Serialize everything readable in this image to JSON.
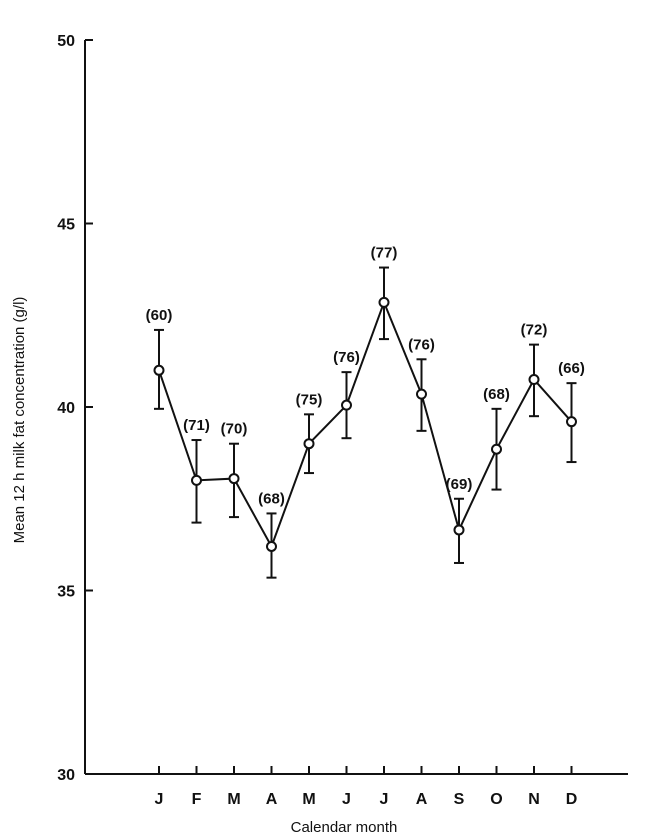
{
  "chart_data": {
    "type": "line",
    "xlabel": "Calendar month",
    "ylabel": "Mean 12 h milk fat concentration (g/l)",
    "ylim": [
      30,
      50
    ],
    "yticks": [
      30,
      35,
      40,
      45,
      50
    ],
    "categories": [
      "J",
      "F",
      "M",
      "A",
      "M",
      "J",
      "J",
      "A",
      "S",
      "O",
      "N",
      "D"
    ],
    "series": [
      {
        "values": [
          41.0,
          38.0,
          38.05,
          36.2,
          39.0,
          40.05,
          42.85,
          40.35,
          36.65,
          38.85,
          40.75,
          39.6
        ],
        "error_upper": [
          42.1,
          39.1,
          39.0,
          37.1,
          39.8,
          40.95,
          43.8,
          41.3,
          37.5,
          39.95,
          41.7,
          40.65
        ],
        "error_lower": [
          39.95,
          36.85,
          37.0,
          35.35,
          38.2,
          39.15,
          41.85,
          39.35,
          35.75,
          37.75,
          39.75,
          38.5
        ],
        "n_labels": [
          "(60)",
          "(71)",
          "(70)",
          "(68)",
          "(75)",
          "(76)",
          "(77)",
          "(76)",
          "(69)",
          "(68)",
          "(72)",
          "(66)"
        ]
      }
    ],
    "grid": false,
    "legend": "none",
    "colors": {
      "line": "#111111",
      "marker_fill": "#ffffff"
    }
  }
}
